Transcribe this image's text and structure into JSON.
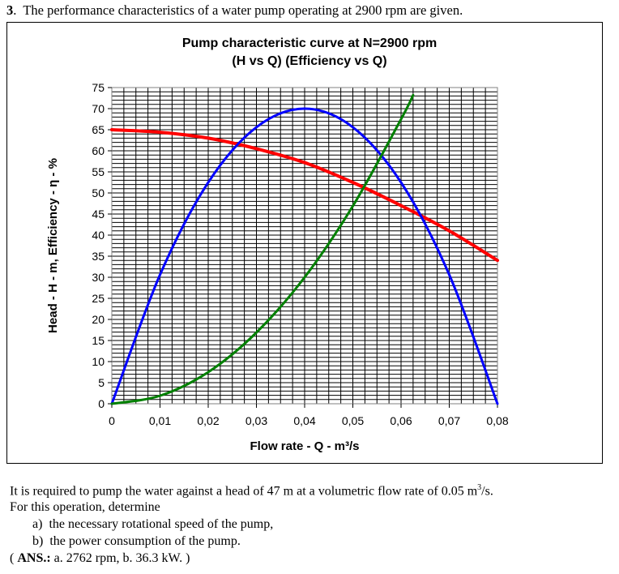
{
  "problem": {
    "number": "3",
    "statement": "The performance characteristics of a water pump operating at 2900 rpm are given.",
    "text_line1": "It is required to pump the water against a head of 47 m at a volumetric flow rate of 0.05 m",
    "text_line1_sup": "3",
    "text_line1_end": "/s.",
    "text_line2": "For this operation, determine",
    "items": [
      {
        "marker": "a)",
        "text": "the necessary rotational speed of the pump,"
      },
      {
        "marker": "b)",
        "text": "the power consumption of the pump."
      }
    ],
    "answer_open": "( ",
    "answer_label": "ANS.:",
    "answer_text": " a. 2762 rpm,  b. 36.3 kW. )"
  },
  "chart_data": {
    "type": "line",
    "title_line1": "Pump characteristic curve at N=2900 rpm",
    "title_line2": "(H vs Q) (Efficiency vs Q)",
    "xlabel": "Flow rate - Q - m³/s",
    "ylabel": "Head - H - m, Efficiency - η - %",
    "xlim": [
      0,
      0.08
    ],
    "ylim": [
      0,
      75
    ],
    "xticks": [
      "0",
      "0,01",
      "0,02",
      "0,03",
      "0,04",
      "0,05",
      "0,06",
      "0,07",
      "0,08"
    ],
    "yticks": [
      "0",
      "5",
      "10",
      "15",
      "20",
      "25",
      "30",
      "35",
      "40",
      "45",
      "50",
      "55",
      "60",
      "65",
      "70",
      "75"
    ],
    "grid": {
      "on": true,
      "x_minor_step": 0.0025,
      "y_minor_step": 1
    },
    "legend": "none",
    "series": [
      {
        "color": "#ff0000",
        "x": [
          0,
          0.01,
          0.02,
          0.03,
          0.04,
          0.05,
          0.06,
          0.07,
          0.08
        ],
        "y": [
          65,
          64.4,
          63,
          60.5,
          57.2,
          52.5,
          47,
          41,
          34
        ]
      },
      {
        "color": "#0000ff",
        "x": [
          0,
          0.01,
          0.02,
          0.03,
          0.04,
          0.05,
          0.06,
          0.07,
          0.08
        ],
        "y": [
          0,
          30.6,
          52.5,
          65.6,
          70,
          65.6,
          52.5,
          30.6,
          0
        ]
      },
      {
        "color": "#008000",
        "x": [
          0,
          0.01,
          0.02,
          0.03,
          0.04,
          0.05,
          0.06,
          0.0625
        ],
        "y": [
          0,
          1.9,
          7.5,
          16.9,
          30,
          46.9,
          67.5,
          73.2
        ]
      }
    ]
  }
}
